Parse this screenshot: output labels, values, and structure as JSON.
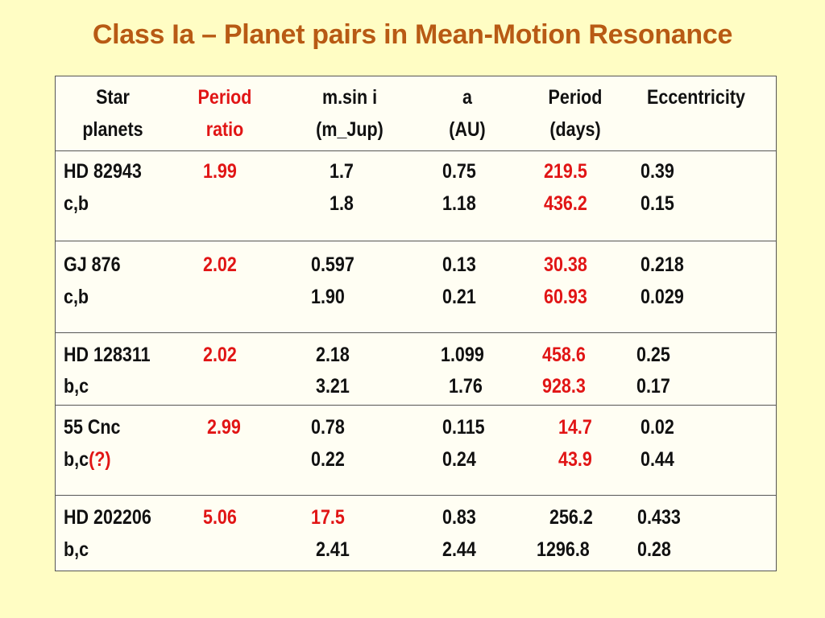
{
  "title": "Class Ia – Planet pairs in Mean-Motion Resonance",
  "colors": {
    "background": "#fffdc4",
    "title": "#b85a14",
    "highlight": "#e11515"
  },
  "headers": {
    "star": [
      "Star",
      "planets"
    ],
    "ratio": [
      "Period",
      "ratio"
    ],
    "msini": [
      "m.sin i",
      "(m_Jup)"
    ],
    "a": [
      "a",
      "(AU)"
    ],
    "period": [
      "Period",
      "(days)"
    ],
    "ecc": [
      "Eccentricity",
      ""
    ]
  },
  "rows": [
    {
      "star": "HD 82943",
      "planets": "c,b",
      "planets_note": "",
      "ratio": "1.99",
      "msini": [
        "1.7",
        "1.8"
      ],
      "a": [
        "0.75",
        "1.18"
      ],
      "period": [
        "219.5",
        "436.2"
      ],
      "ecc": [
        "0.39",
        "0.15"
      ]
    },
    {
      "star": "GJ 876",
      "planets": "c,b",
      "planets_note": "",
      "ratio": "2.02",
      "msini": [
        "0.597",
        "1.90"
      ],
      "a": [
        "0.13",
        "0.21"
      ],
      "period": [
        "30.38",
        "60.93"
      ],
      "ecc": [
        "0.218",
        "0.029"
      ]
    },
    {
      "star": "HD 128311",
      "planets": "b,c",
      "planets_note": "",
      "ratio": "2.02",
      "msini": [
        "2.18",
        "3.21"
      ],
      "a": [
        "1.099",
        "1.76"
      ],
      "period": [
        "458.6",
        "928.3"
      ],
      "ecc": [
        "0.25",
        "0.17"
      ]
    },
    {
      "star": "55 Cnc",
      "planets": "b,c",
      "planets_note": "(?)",
      "ratio": "2.99",
      "msini": [
        "0.78",
        "0.22"
      ],
      "a": [
        "0.115",
        "0.24"
      ],
      "period": [
        "14.7",
        "43.9"
      ],
      "ecc": [
        "0.02",
        "0.44"
      ]
    },
    {
      "star": "HD 202206",
      "planets": "b,c",
      "planets_note": "",
      "ratio": "5.06",
      "msini": [
        "17.5",
        "2.41"
      ],
      "a": [
        "0.83",
        "2.44"
      ],
      "period": [
        "256.2",
        "1296.8"
      ],
      "ecc": [
        "0.433",
        "0.28"
      ]
    }
  ]
}
